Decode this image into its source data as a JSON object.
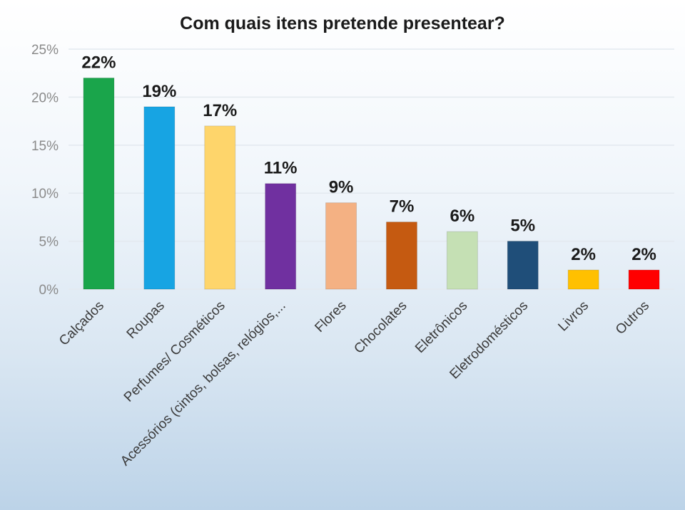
{
  "chart_data": {
    "type": "bar",
    "title": "Com quais itens pretende presentear?",
    "categories": [
      "Calçados",
      "Roupas",
      "Perfumes/ Cosméticos",
      "Acessórios (cintos, bolsas, relógios,...",
      "Flores",
      "Chocolates",
      "Eletrônicos",
      "Eletrodomésticos",
      "Livros",
      "Outros"
    ],
    "values": [
      22,
      19,
      17,
      11,
      9,
      7,
      6,
      5,
      2,
      2
    ],
    "data_labels": [
      "22%",
      "19%",
      "17%",
      "11%",
      "9%",
      "7%",
      "6%",
      "5%",
      "2%",
      "2%"
    ],
    "colors": [
      "#1aa54b",
      "#17a4e3",
      "#fed56b",
      "#7030a0",
      "#f4b183",
      "#c55a11",
      "#c5e0b4",
      "#1f4e79",
      "#ffc000",
      "#ff0000"
    ],
    "yticks": [
      "0%",
      "5%",
      "10%",
      "15%",
      "20%",
      "25%"
    ],
    "ylim": [
      0,
      25
    ],
    "grid": true,
    "legend": "none"
  }
}
